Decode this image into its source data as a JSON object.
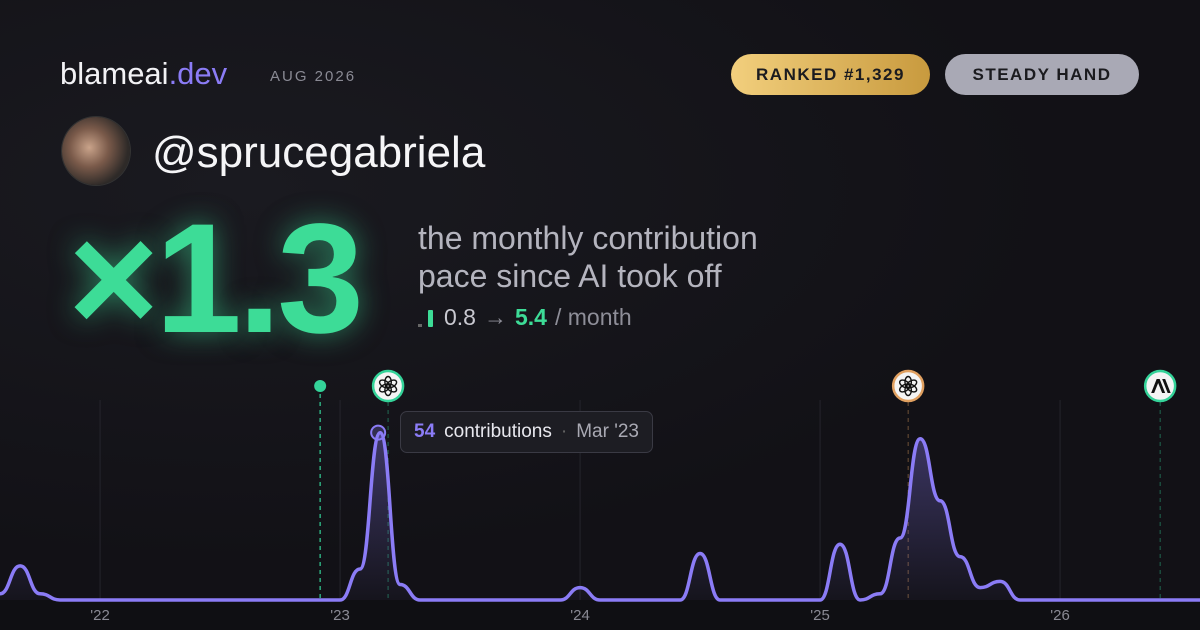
{
  "brand": {
    "name": "blameai",
    "tld": ".dev",
    "period": "AUG 2026"
  },
  "badges": [
    "RANKED #1,329",
    "STEADY HAND"
  ],
  "username": "@sprucegabriela",
  "multiplier": "×1.3",
  "description": [
    "the monthly contribution",
    "pace since AI took off"
  ],
  "pace": {
    "from": 0.8,
    "arrow": "→",
    "to": 5.4,
    "unit": "/ month"
  },
  "chart_data": {
    "type": "line",
    "x": [
      2021.583,
      2021.667,
      2021.75,
      2021.833,
      2021.917,
      2022,
      2022.083,
      2022.167,
      2022.25,
      2022.333,
      2022.417,
      2022.5,
      2022.583,
      2022.667,
      2022.75,
      2022.833,
      2022.917,
      2023,
      2023.083,
      2023.167,
      2023.25,
      2023.333,
      2023.417,
      2023.5,
      2023.583,
      2023.667,
      2023.75,
      2023.833,
      2023.917,
      2024,
      2024.083,
      2024.167,
      2024.25,
      2024.333,
      2024.417,
      2024.5,
      2024.583,
      2024.667,
      2024.75,
      2024.833,
      2024.917,
      2025,
      2025.083,
      2025.167,
      2025.25,
      2025.333,
      2025.417,
      2025.5,
      2025.583,
      2025.667,
      2025.75,
      2025.833,
      2025.917,
      2026,
      2026.083,
      2026.167,
      2026.25,
      2026.333,
      2026.417,
      2026.5,
      2026.583
    ],
    "series": [
      {
        "color": "#8b7cf6",
        "values": [
          2,
          11,
          2,
          0,
          0,
          0,
          0,
          0,
          0,
          0,
          0,
          0,
          0,
          0,
          0,
          0,
          0,
          0,
          10,
          54,
          5,
          0,
          0,
          0,
          0,
          0,
          0,
          0,
          0,
          4,
          0,
          0,
          0,
          0,
          0,
          15,
          0,
          0,
          0,
          0,
          0,
          0,
          18,
          0,
          2,
          20,
          52,
          32,
          14,
          4,
          6,
          0,
          0,
          0,
          0,
          0,
          0,
          0,
          0,
          0,
          0
        ]
      }
    ],
    "xlim": [
      2021.583,
      2026.583
    ],
    "ylim": [
      0,
      60
    ],
    "xticks": [
      {
        "value": 2022,
        "label": "'22"
      },
      {
        "value": 2023,
        "label": "'23"
      },
      {
        "value": 2024,
        "label": "'24"
      },
      {
        "value": 2025,
        "label": "'25"
      },
      {
        "value": 2026,
        "label": "'26"
      }
    ],
    "grid": true,
    "events": [
      {
        "x": 2022.917,
        "marker": "dot",
        "color": "#34d399"
      },
      {
        "x": 2023.2,
        "marker": "openai",
        "color": "#34d399"
      },
      {
        "x": 2025.367,
        "marker": "openai",
        "color": "#e0a060"
      },
      {
        "x": 2026.417,
        "marker": "anthropic",
        "color": "#34d399"
      }
    ],
    "tooltip": {
      "index": 19,
      "label": "contributions",
      "date": "Mar '23"
    }
  }
}
